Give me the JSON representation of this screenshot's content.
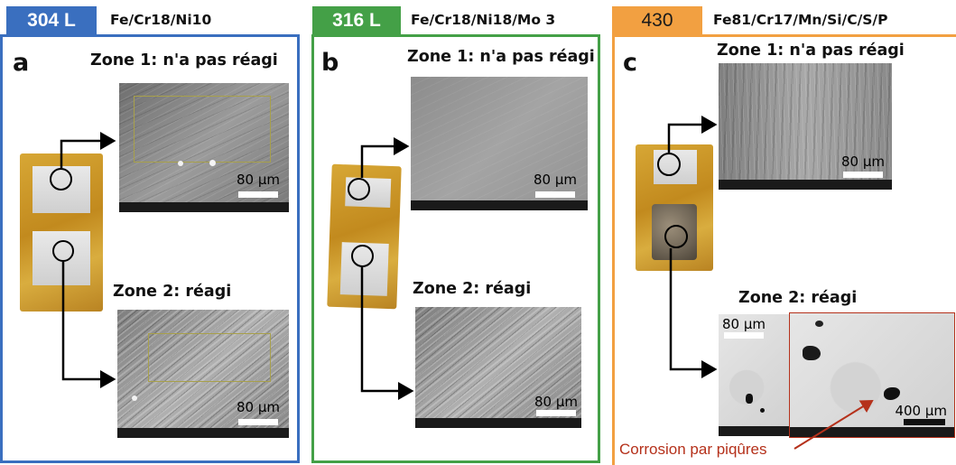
{
  "colors": {
    "panel_a": "#3a6fbf",
    "panel_b": "#44a047",
    "panel_c": "#f2a041",
    "annotation": "#b5311b"
  },
  "panels": [
    {
      "tag": "304 L",
      "formula": "Fe/Cr18/Ni10",
      "letter": "a",
      "zone1": "Zone 1: n'a pas réagi",
      "zone2": "Zone 2: réagi",
      "scale1": "80 µm",
      "scale2": "80 µm"
    },
    {
      "tag": "316 L",
      "formula": "Fe/Cr18/Ni18/Mo 3",
      "letter": "b",
      "zone1": "Zone 1: n'a pas réagi",
      "zone2": "Zone 2: réagi",
      "scale1": "80 µm",
      "scale2": "80 µm"
    },
    {
      "tag": "430",
      "formula": "Fe81/Cr17/Mn/Si/C/S/P",
      "letter": "c",
      "zone1": "Zone 1: n'a pas réagi",
      "zone2": "Zone 2: réagi",
      "scale1": "80 µm",
      "scale2a": "80 µm",
      "scale2b": "400 µm",
      "annotation": "Corrosion par piqûres"
    }
  ]
}
